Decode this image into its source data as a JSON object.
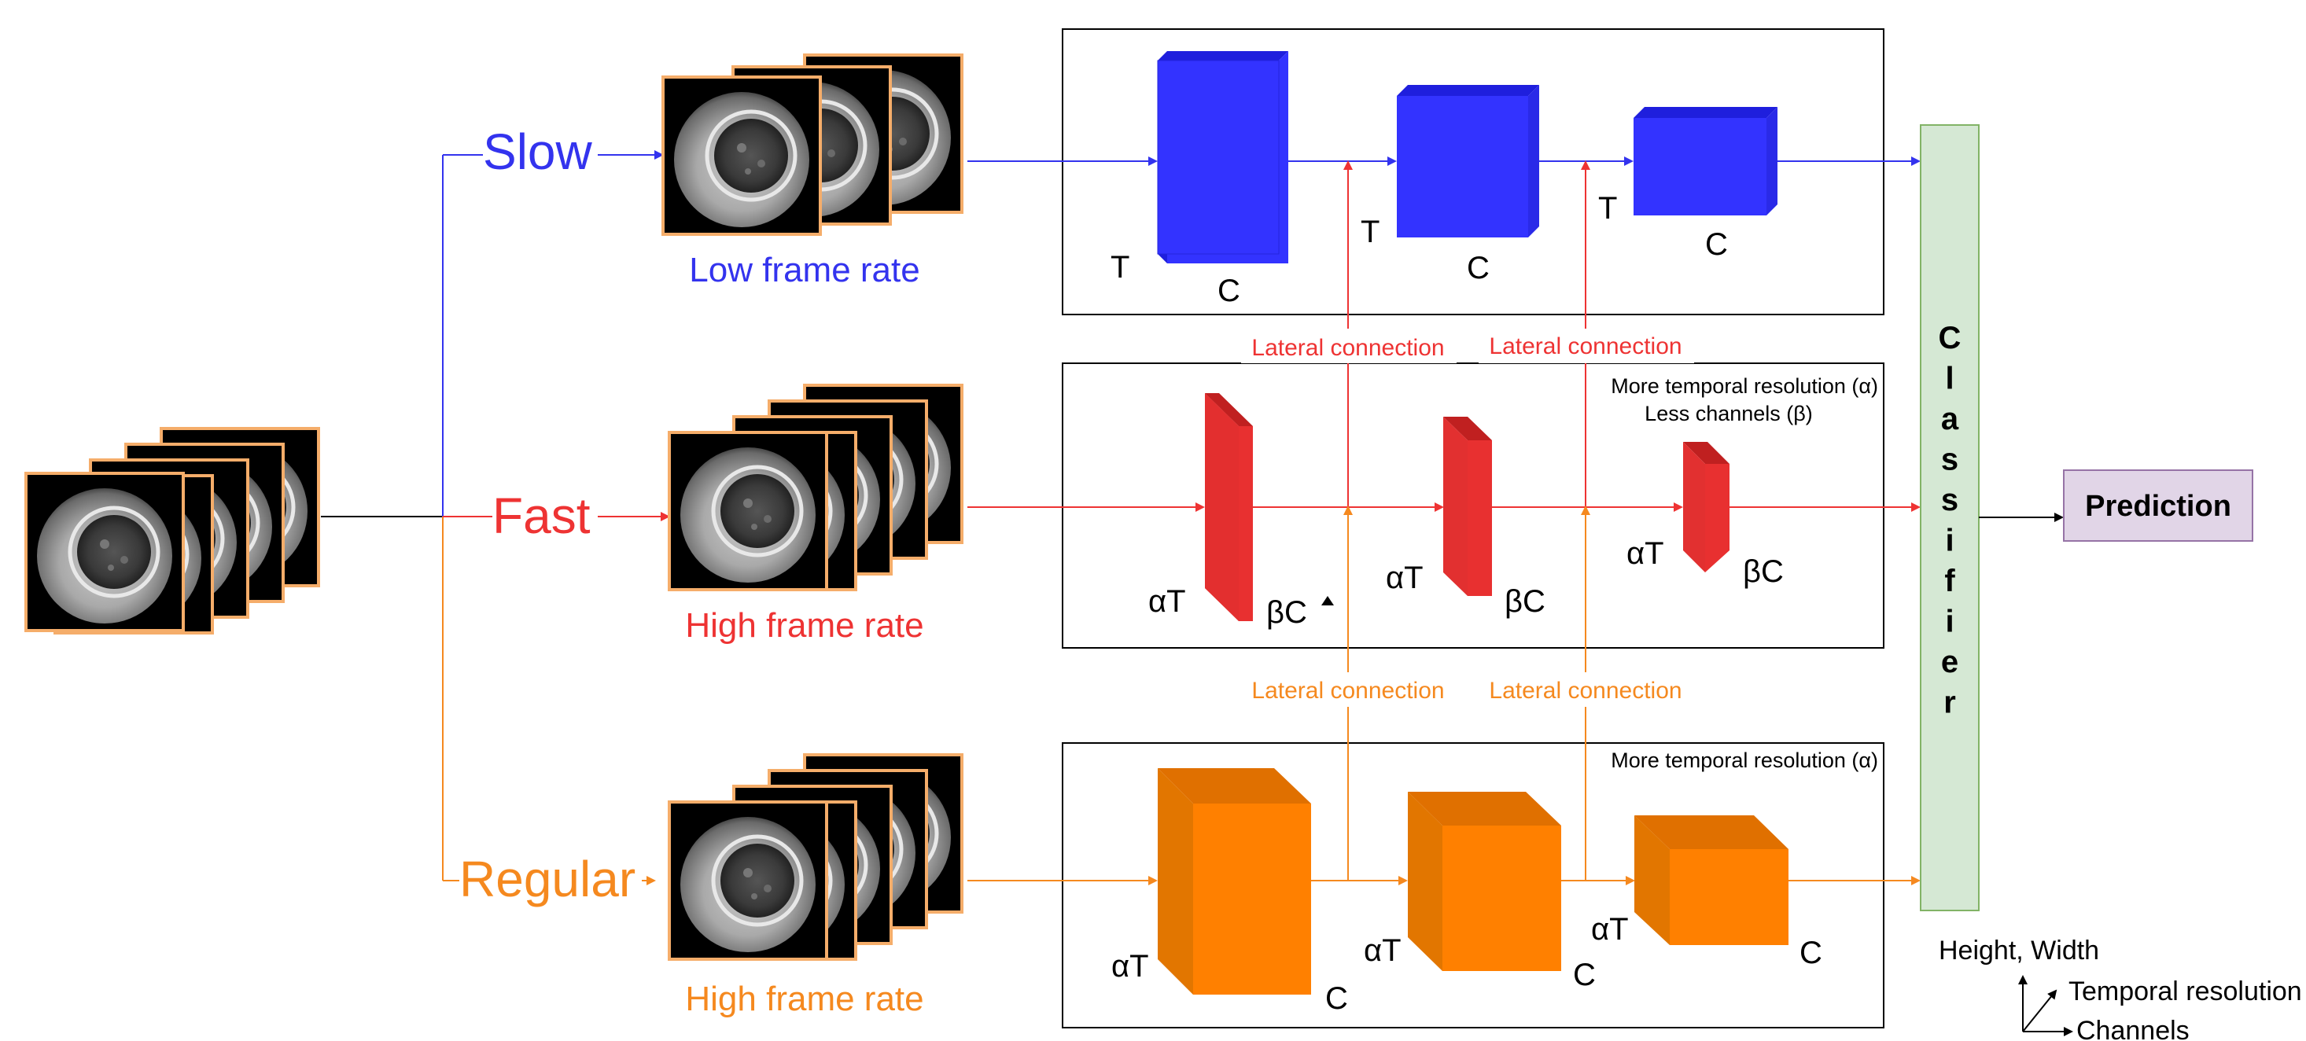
{
  "pathways": {
    "slow": {
      "label": "Slow",
      "sublabel": "Low frame rate"
    },
    "fast": {
      "label": "Fast",
      "sublabel": "High frame rate"
    },
    "regular": {
      "label": "Regular",
      "sublabel": "High frame rate"
    }
  },
  "blocks": {
    "slow": [
      {
        "t": "T",
        "c": "C"
      },
      {
        "t": "T",
        "c": "C"
      },
      {
        "t": "T",
        "c": "C"
      }
    ],
    "fast": [
      {
        "t": "αT",
        "c": "βC"
      },
      {
        "t": "αT",
        "c": "βC"
      },
      {
        "t": "αT",
        "c": "βC"
      }
    ],
    "regular": [
      {
        "t": "αT",
        "c": "C"
      },
      {
        "t": "αT",
        "c": "C"
      },
      {
        "t": "αT",
        "c": "C"
      }
    ]
  },
  "lateral": {
    "label": "Lateral connection"
  },
  "notes": {
    "fast_line1": "More temporal resolution (α)",
    "fast_line2": "Less channels (β)",
    "regular": "More temporal resolution (α)"
  },
  "classifier": {
    "letters": [
      "C",
      "l",
      "a",
      "s",
      "s",
      "i",
      "f",
      "i",
      "e",
      "r"
    ]
  },
  "prediction": {
    "label": "Prediction"
  },
  "legend": {
    "height_width": "Height, Width",
    "temporal": "Temporal resolution",
    "channels": "Channels"
  },
  "colors": {
    "slow": "#3333ee",
    "slow_block": "#3333ff",
    "slow_block_dark": "#1f1fdd",
    "fast": "#ee3333",
    "fast_block": "#e83030",
    "fast_block_dark": "#c02020",
    "regular": "#f5891f",
    "regular_block": "#ff8000",
    "regular_block_dark": "#e07000",
    "frame_border": "#f5ad6a",
    "classifier_fill": "#d5e8d4",
    "classifier_stroke": "#82b366",
    "prediction_fill": "#e1d5e7",
    "prediction_stroke": "#9673a6"
  },
  "icons": [
    "embryo-frame-image",
    "arrow-icon"
  ]
}
